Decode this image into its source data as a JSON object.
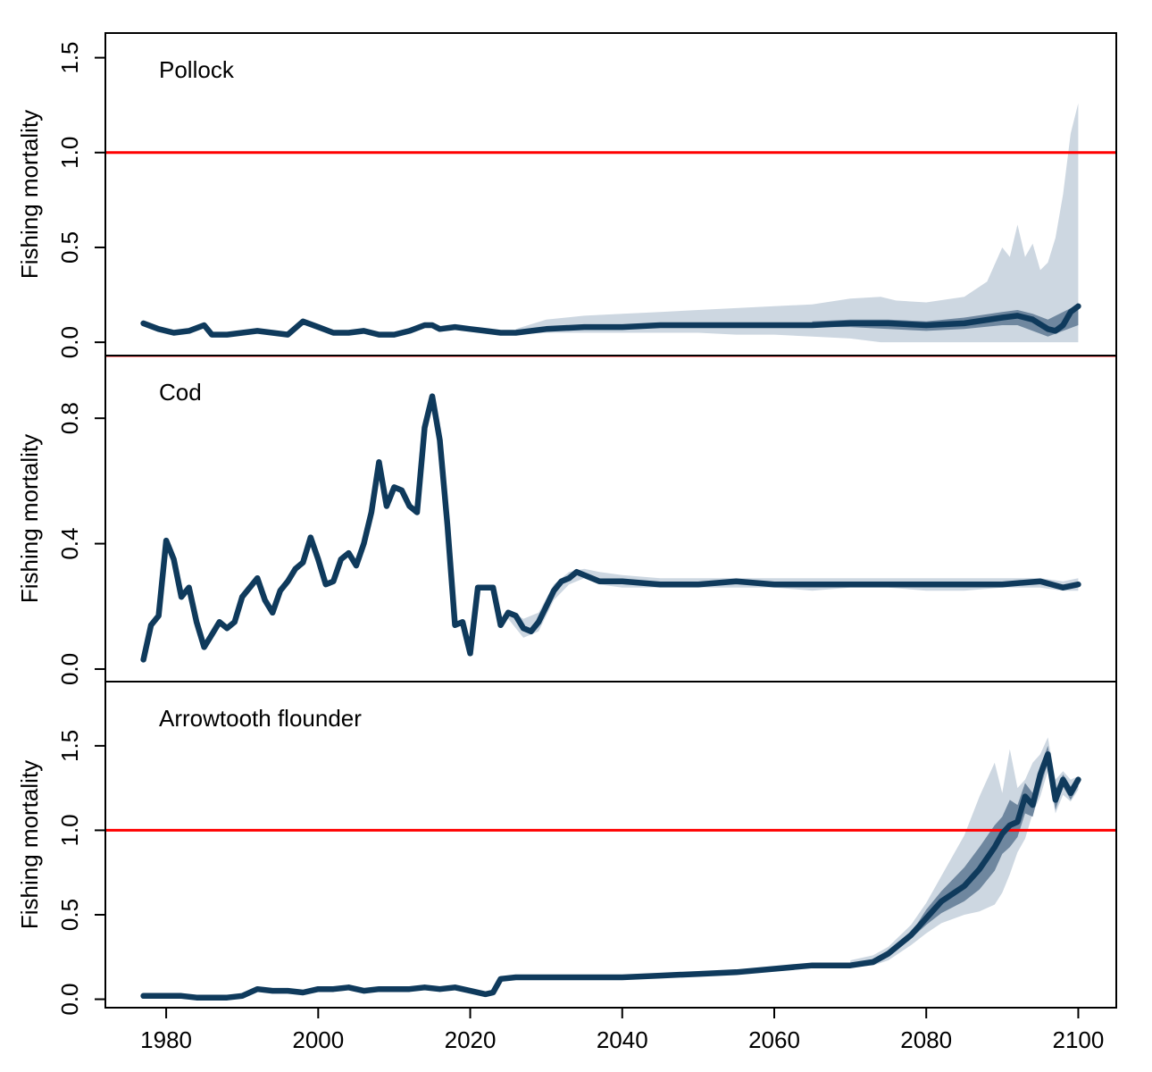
{
  "chart_data": {
    "type": "line",
    "x_ticks": [
      1980,
      2000,
      2020,
      2040,
      2060,
      2080,
      2100
    ],
    "xlim": [
      1972,
      2105
    ],
    "colors": {
      "line": "#0f3a5c",
      "band_outer": "#cdd7e1",
      "band_inner": "#6f879f",
      "reference": "#ff0000"
    },
    "panels": [
      {
        "title": "Pollock",
        "ylabel": "Fishing mortality",
        "ylim": [
          -0.07,
          1.63
        ],
        "y_ticks": [
          "0.0",
          "0.5",
          "1.0",
          "1.5"
        ],
        "y_tick_values": [
          0,
          0.5,
          1.0,
          1.5
        ],
        "reference_line": 1.0,
        "series": [
          {
            "x": [
              1977,
              1979,
              1981,
              1983,
              1985,
              1986,
              1988,
              1990,
              1992,
              1994,
              1996,
              1998,
              2000,
              2002,
              2004,
              2006,
              2008,
              2010,
              2012,
              2014,
              2015,
              2016,
              2018,
              2020,
              2022,
              2024,
              2026,
              2030,
              2035,
              2040,
              2045,
              2050,
              2055,
              2060,
              2065,
              2070,
              2075,
              2080,
              2085,
              2090,
              2092,
              2094,
              2096,
              2097,
              2098,
              2099,
              2100
            ],
            "y": [
              0.1,
              0.07,
              0.05,
              0.06,
              0.09,
              0.04,
              0.04,
              0.05,
              0.06,
              0.05,
              0.04,
              0.11,
              0.08,
              0.05,
              0.05,
              0.06,
              0.04,
              0.04,
              0.06,
              0.09,
              0.09,
              0.07,
              0.08,
              0.07,
              0.06,
              0.05,
              0.05,
              0.07,
              0.08,
              0.08,
              0.09,
              0.09,
              0.09,
              0.09,
              0.09,
              0.1,
              0.1,
              0.09,
              0.1,
              0.13,
              0.14,
              0.12,
              0.07,
              0.06,
              0.09,
              0.16,
              0.19
            ]
          }
        ],
        "bands": [
          {
            "level": "outer",
            "x": [
              2026,
              2030,
              2035,
              2040,
              2045,
              2050,
              2055,
              2060,
              2065,
              2070,
              2074,
              2076,
              2080,
              2085,
              2088,
              2090,
              2091,
              2092,
              2093,
              2094,
              2095,
              2096,
              2097,
              2098,
              2099,
              2100
            ],
            "upper": [
              0.07,
              0.12,
              0.14,
              0.15,
              0.16,
              0.17,
              0.18,
              0.19,
              0.2,
              0.23,
              0.24,
              0.22,
              0.21,
              0.24,
              0.32,
              0.5,
              0.45,
              0.62,
              0.45,
              0.52,
              0.38,
              0.42,
              0.55,
              0.78,
              1.1,
              1.26
            ],
            "lower": [
              0.04,
              0.05,
              0.05,
              0.05,
              0.05,
              0.05,
              0.04,
              0.04,
              0.03,
              0.02,
              0.0,
              0.0,
              0.0,
              0.0,
              0.0,
              0.0,
              0.0,
              0.0,
              0.0,
              0.0,
              0.0,
              0.0,
              0.0,
              0.0,
              0.0,
              0.0
            ]
          },
          {
            "level": "inner",
            "x": [
              2065,
              2070,
              2075,
              2080,
              2085,
              2090,
              2092,
              2094,
              2096,
              2098,
              2100
            ],
            "upper": [
              0.11,
              0.12,
              0.12,
              0.11,
              0.13,
              0.16,
              0.17,
              0.15,
              0.12,
              0.16,
              0.2
            ],
            "lower": [
              0.08,
              0.08,
              0.07,
              0.06,
              0.07,
              0.09,
              0.09,
              0.06,
              0.03,
              0.06,
              0.09
            ]
          }
        ]
      },
      {
        "title": "Cod",
        "ylabel": "Fishing mortality",
        "ylim": [
          -0.04,
          1.0
        ],
        "y_ticks": [
          "0.0",
          "0.4",
          "0.8"
        ],
        "y_tick_values": [
          0,
          0.4,
          0.8
        ],
        "reference_line": 1.0,
        "series": [
          {
            "x": [
              1977,
              1978,
              1979,
              1980,
              1981,
              1982,
              1983,
              1984,
              1985,
              1986,
              1987,
              1988,
              1989,
              1990,
              1991,
              1992,
              1993,
              1994,
              1995,
              1996,
              1997,
              1998,
              1999,
              2000,
              2001,
              2002,
              2003,
              2004,
              2005,
              2006,
              2007,
              2008,
              2009,
              2010,
              2011,
              2012,
              2013,
              2014,
              2015,
              2016,
              2017,
              2018,
              2019,
              2020,
              2021,
              2022,
              2023,
              2024,
              2025,
              2026,
              2027,
              2028,
              2029,
              2030,
              2031,
              2032,
              2033,
              2034,
              2035,
              2036,
              2037,
              2038,
              2040,
              2045,
              2050,
              2055,
              2060,
              2065,
              2070,
              2075,
              2080,
              2085,
              2090,
              2095,
              2098,
              2100
            ],
            "y": [
              0.03,
              0.14,
              0.17,
              0.41,
              0.35,
              0.23,
              0.26,
              0.15,
              0.07,
              0.11,
              0.15,
              0.13,
              0.15,
              0.23,
              0.26,
              0.29,
              0.22,
              0.18,
              0.25,
              0.28,
              0.32,
              0.34,
              0.42,
              0.35,
              0.27,
              0.28,
              0.35,
              0.37,
              0.33,
              0.4,
              0.5,
              0.66,
              0.52,
              0.58,
              0.57,
              0.52,
              0.5,
              0.77,
              0.87,
              0.73,
              0.46,
              0.14,
              0.15,
              0.05,
              0.26,
              0.26,
              0.26,
              0.14,
              0.18,
              0.17,
              0.13,
              0.12,
              0.15,
              0.2,
              0.25,
              0.28,
              0.29,
              0.31,
              0.3,
              0.29,
              0.28,
              0.28,
              0.28,
              0.27,
              0.27,
              0.28,
              0.27,
              0.27,
              0.27,
              0.27,
              0.27,
              0.27,
              0.27,
              0.28,
              0.26,
              0.27
            ]
          }
        ],
        "bands": [
          {
            "level": "outer",
            "x": [
              2025,
              2027,
              2029,
              2031,
              2033,
              2035,
              2037,
              2040,
              2045,
              2050,
              2055,
              2060,
              2065,
              2070,
              2075,
              2080,
              2085,
              2090,
              2095,
              2098,
              2100
            ],
            "upper": [
              0.19,
              0.16,
              0.18,
              0.27,
              0.31,
              0.32,
              0.31,
              0.3,
              0.29,
              0.29,
              0.29,
              0.29,
              0.29,
              0.29,
              0.29,
              0.29,
              0.29,
              0.29,
              0.29,
              0.28,
              0.29
            ],
            "lower": [
              0.16,
              0.1,
              0.12,
              0.22,
              0.27,
              0.29,
              0.27,
              0.26,
              0.26,
              0.26,
              0.26,
              0.26,
              0.25,
              0.26,
              0.26,
              0.25,
              0.25,
              0.26,
              0.26,
              0.25,
              0.25
            ]
          }
        ]
      },
      {
        "title": "Arrowtooth flounder",
        "ylabel": "Fishing mortality",
        "ylim": [
          -0.05,
          1.88
        ],
        "y_ticks": [
          "0.0",
          "0.5",
          "1.0",
          "1.5"
        ],
        "y_tick_values": [
          0,
          0.5,
          1.0,
          1.5
        ],
        "reference_line": 1.0,
        "series": [
          {
            "x": [
              1977,
              1980,
              1982,
              1984,
              1986,
              1988,
              1990,
              1992,
              1994,
              1996,
              1998,
              2000,
              2002,
              2004,
              2006,
              2008,
              2010,
              2012,
              2014,
              2016,
              2018,
              2020,
              2022,
              2023,
              2024,
              2026,
              2030,
              2035,
              2040,
              2045,
              2050,
              2055,
              2060,
              2065,
              2070,
              2073,
              2075,
              2078,
              2080,
              2082,
              2085,
              2087,
              2089,
              2090,
              2091,
              2092,
              2093,
              2094,
              2095,
              2096,
              2097,
              2098,
              2099,
              2100
            ],
            "y": [
              0.02,
              0.02,
              0.02,
              0.01,
              0.01,
              0.01,
              0.02,
              0.06,
              0.05,
              0.05,
              0.04,
              0.06,
              0.06,
              0.07,
              0.05,
              0.06,
              0.06,
              0.06,
              0.07,
              0.06,
              0.07,
              0.05,
              0.03,
              0.04,
              0.12,
              0.13,
              0.13,
              0.13,
              0.13,
              0.14,
              0.15,
              0.16,
              0.18,
              0.2,
              0.2,
              0.22,
              0.27,
              0.38,
              0.48,
              0.58,
              0.67,
              0.77,
              0.9,
              0.98,
              1.03,
              1.05,
              1.2,
              1.15,
              1.33,
              1.45,
              1.18,
              1.3,
              1.22,
              1.3
            ]
          }
        ],
        "bands": [
          {
            "level": "outer",
            "x": [
              2070,
              2073,
              2075,
              2078,
              2080,
              2082,
              2085,
              2087,
              2089,
              2090,
              2091,
              2092,
              2093,
              2094,
              2095,
              2096,
              2097,
              2098,
              2099,
              2100
            ],
            "upper": [
              0.23,
              0.26,
              0.31,
              0.44,
              0.57,
              0.73,
              0.97,
              1.2,
              1.4,
              1.22,
              1.48,
              1.25,
              1.3,
              1.4,
              1.45,
              1.55,
              1.3,
              1.35,
              1.3,
              1.32
            ],
            "lower": [
              0.19,
              0.2,
              0.23,
              0.32,
              0.39,
              0.45,
              0.5,
              0.52,
              0.56,
              0.63,
              0.74,
              0.87,
              0.95,
              1.1,
              1.2,
              1.35,
              1.1,
              1.21,
              1.17,
              1.24
            ]
          },
          {
            "level": "inner",
            "x": [
              2078,
              2080,
              2082,
              2085,
              2087,
              2089,
              2090,
              2091,
              2092,
              2093,
              2094,
              2095,
              2096,
              2097,
              2098,
              2099,
              2100
            ],
            "upper": [
              0.39,
              0.53,
              0.64,
              0.78,
              0.9,
              1.03,
              1.08,
              1.18,
              1.15,
              1.28,
              1.22,
              1.38,
              1.5,
              1.24,
              1.33,
              1.26,
              1.32
            ],
            "lower": [
              0.36,
              0.44,
              0.51,
              0.58,
              0.65,
              0.76,
              0.86,
              0.9,
              0.96,
              1.1,
              1.08,
              1.25,
              1.4,
              1.12,
              1.26,
              1.18,
              1.26
            ]
          }
        ]
      }
    ]
  }
}
